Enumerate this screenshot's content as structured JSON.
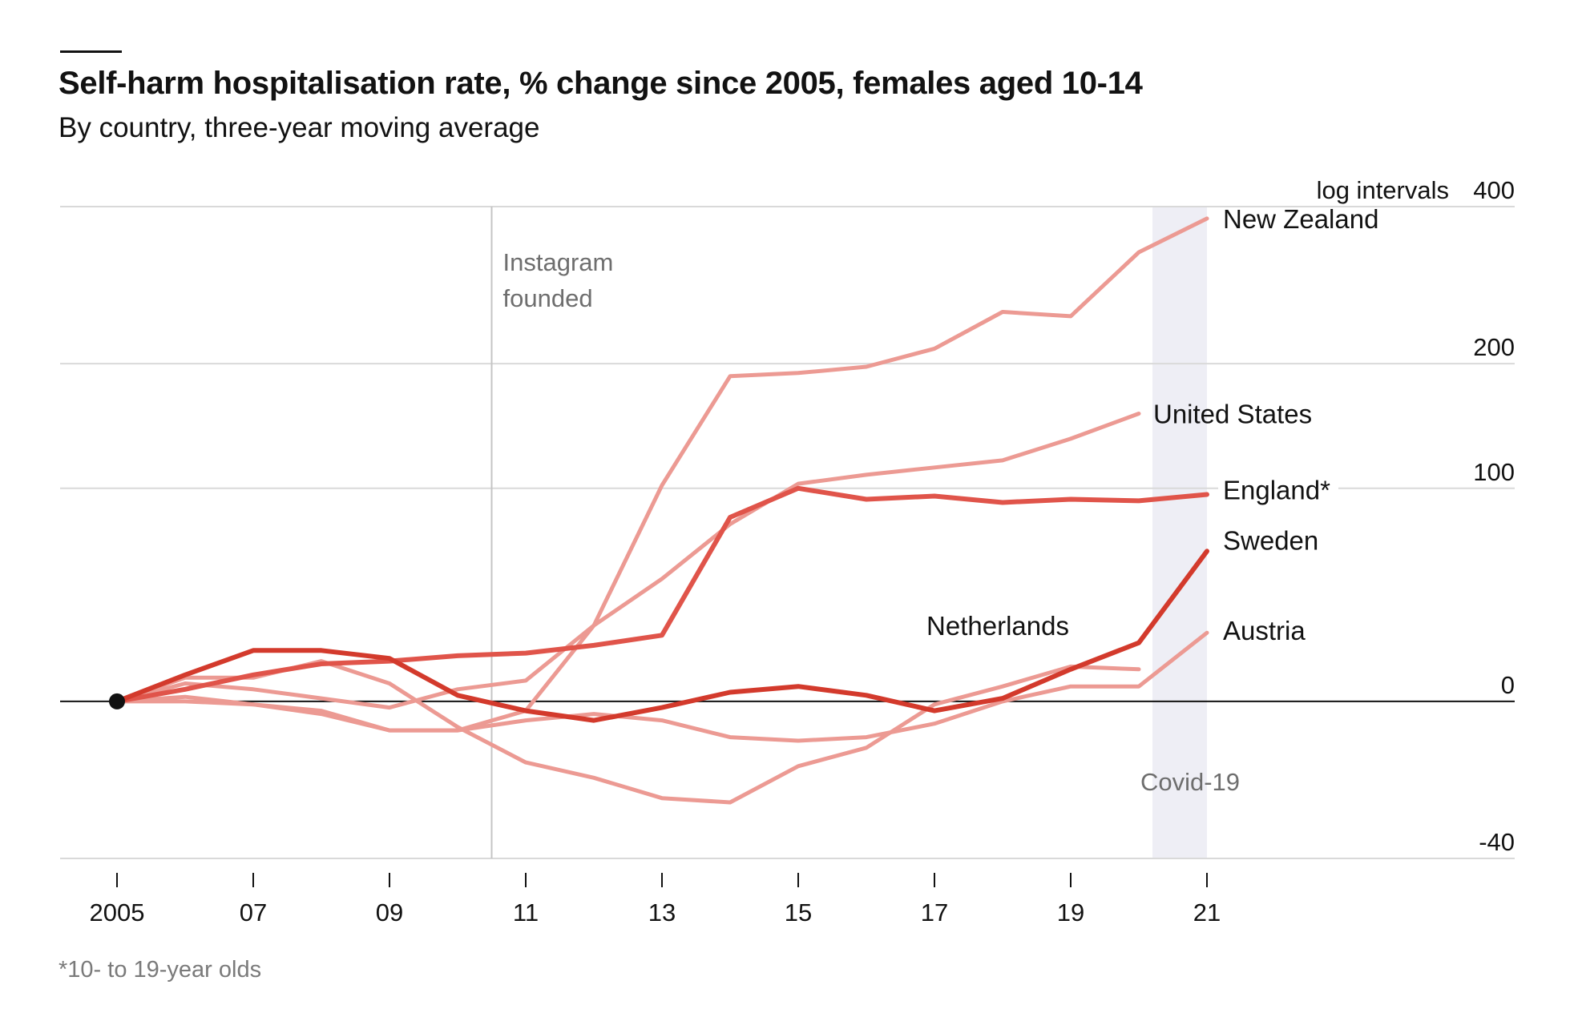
{
  "title": "Self-harm hospitalisation rate, % change since 2005, females aged 10-14",
  "subtitle": "By country, three-year moving average",
  "footnote": "*10- to 19-year olds",
  "colors": {
    "dark_red": "#d33a2c",
    "mid_red": "#e0544a",
    "light_red": "#ec9a93",
    "grid": "#d9d9d9",
    "zero_line": "#121212",
    "shade": "#eeeef5"
  },
  "chart_data": {
    "type": "line",
    "x_axis": {
      "ticks": [
        2005,
        2007,
        2009,
        2011,
        2013,
        2015,
        2017,
        2019,
        2021
      ],
      "tick_labels": [
        "2005",
        "07",
        "09",
        "11",
        "13",
        "15",
        "17",
        "19",
        "21"
      ],
      "range": [
        2004.2,
        2025.2
      ]
    },
    "y_axis": {
      "scale": "log",
      "note": "log intervals",
      "ticks": [
        -40,
        0,
        100,
        200,
        400
      ],
      "tick_labels": [
        "-40",
        "0",
        "100",
        "200",
        "400"
      ],
      "range": [
        -40,
        400
      ]
    },
    "annotations": [
      {
        "text": [
          "Instagram",
          "founded"
        ],
        "x": 2010.5
      },
      {
        "text": [
          "Covid-19"
        ],
        "x_start": 2020.2,
        "x_end": 2021
      }
    ],
    "series": [
      {
        "name": "New Zealand",
        "color": "light",
        "width": 5,
        "x": [
          2005,
          2006,
          2007,
          2008,
          2009,
          2010,
          2011,
          2012,
          2013,
          2014,
          2015,
          2016,
          2017,
          2018,
          2019,
          2020,
          2021
        ],
        "y": [
          0,
          1.5,
          -1,
          -3,
          -9,
          -9,
          -3,
          28,
          102,
          188,
          191,
          197,
          215,
          255,
          250,
          331,
          381
        ]
      },
      {
        "name": "United States",
        "color": "light",
        "width": 5,
        "x": [
          2005,
          2006,
          2007,
          2008,
          2009,
          2010,
          2011,
          2012,
          2013,
          2014,
          2015,
          2016,
          2017,
          2018,
          2019,
          2020
        ],
        "y": [
          0,
          6,
          4,
          1,
          -2,
          4,
          7,
          28,
          49,
          78,
          103,
          109,
          114,
          119,
          135,
          155
        ]
      },
      {
        "name": "England*",
        "color": "mid",
        "width": 6,
        "x": [
          2005,
          2006,
          2007,
          2008,
          2009,
          2010,
          2011,
          2012,
          2013,
          2014,
          2015,
          2016,
          2017,
          2018,
          2019,
          2020,
          2021
        ],
        "y": [
          0,
          4,
          9,
          13,
          14,
          16,
          17,
          20,
          24,
          82,
          100,
          93,
          95,
          91,
          93,
          92,
          96
        ]
      },
      {
        "name": "Sweden",
        "color": "dark",
        "width": 6,
        "x": [
          2005,
          2006,
          2007,
          2008,
          2009,
          2010,
          2011,
          2012,
          2013,
          2014,
          2015,
          2016,
          2017,
          2018,
          2019,
          2020,
          2021
        ],
        "y": [
          0,
          9,
          18,
          18,
          15,
          2,
          -3,
          -6,
          -2,
          3,
          5,
          2,
          -3,
          1,
          11,
          21,
          63
        ]
      },
      {
        "name": "Austria",
        "color": "light",
        "width": 5,
        "x": [
          2005,
          2006,
          2007,
          2008,
          2009,
          2010,
          2011,
          2012,
          2013,
          2014,
          2015,
          2016,
          2017,
          2018,
          2019,
          2020,
          2021
        ],
        "y": [
          0,
          0,
          -1,
          -4,
          -9,
          -9,
          -6,
          -4,
          -6,
          -11,
          -12,
          -11,
          -7,
          0,
          5,
          5,
          25
        ]
      },
      {
        "name": "Netherlands",
        "color": "light",
        "width": 5,
        "x": [
          2005,
          2006,
          2007,
          2008,
          2009,
          2010,
          2011,
          2012,
          2013,
          2014,
          2015,
          2016,
          2017,
          2018,
          2019,
          2020
        ],
        "y": [
          0,
          8,
          8,
          14,
          6,
          -8,
          -18,
          -22,
          -27,
          -28,
          -19,
          -14,
          -1,
          5,
          12,
          11
        ]
      }
    ]
  }
}
